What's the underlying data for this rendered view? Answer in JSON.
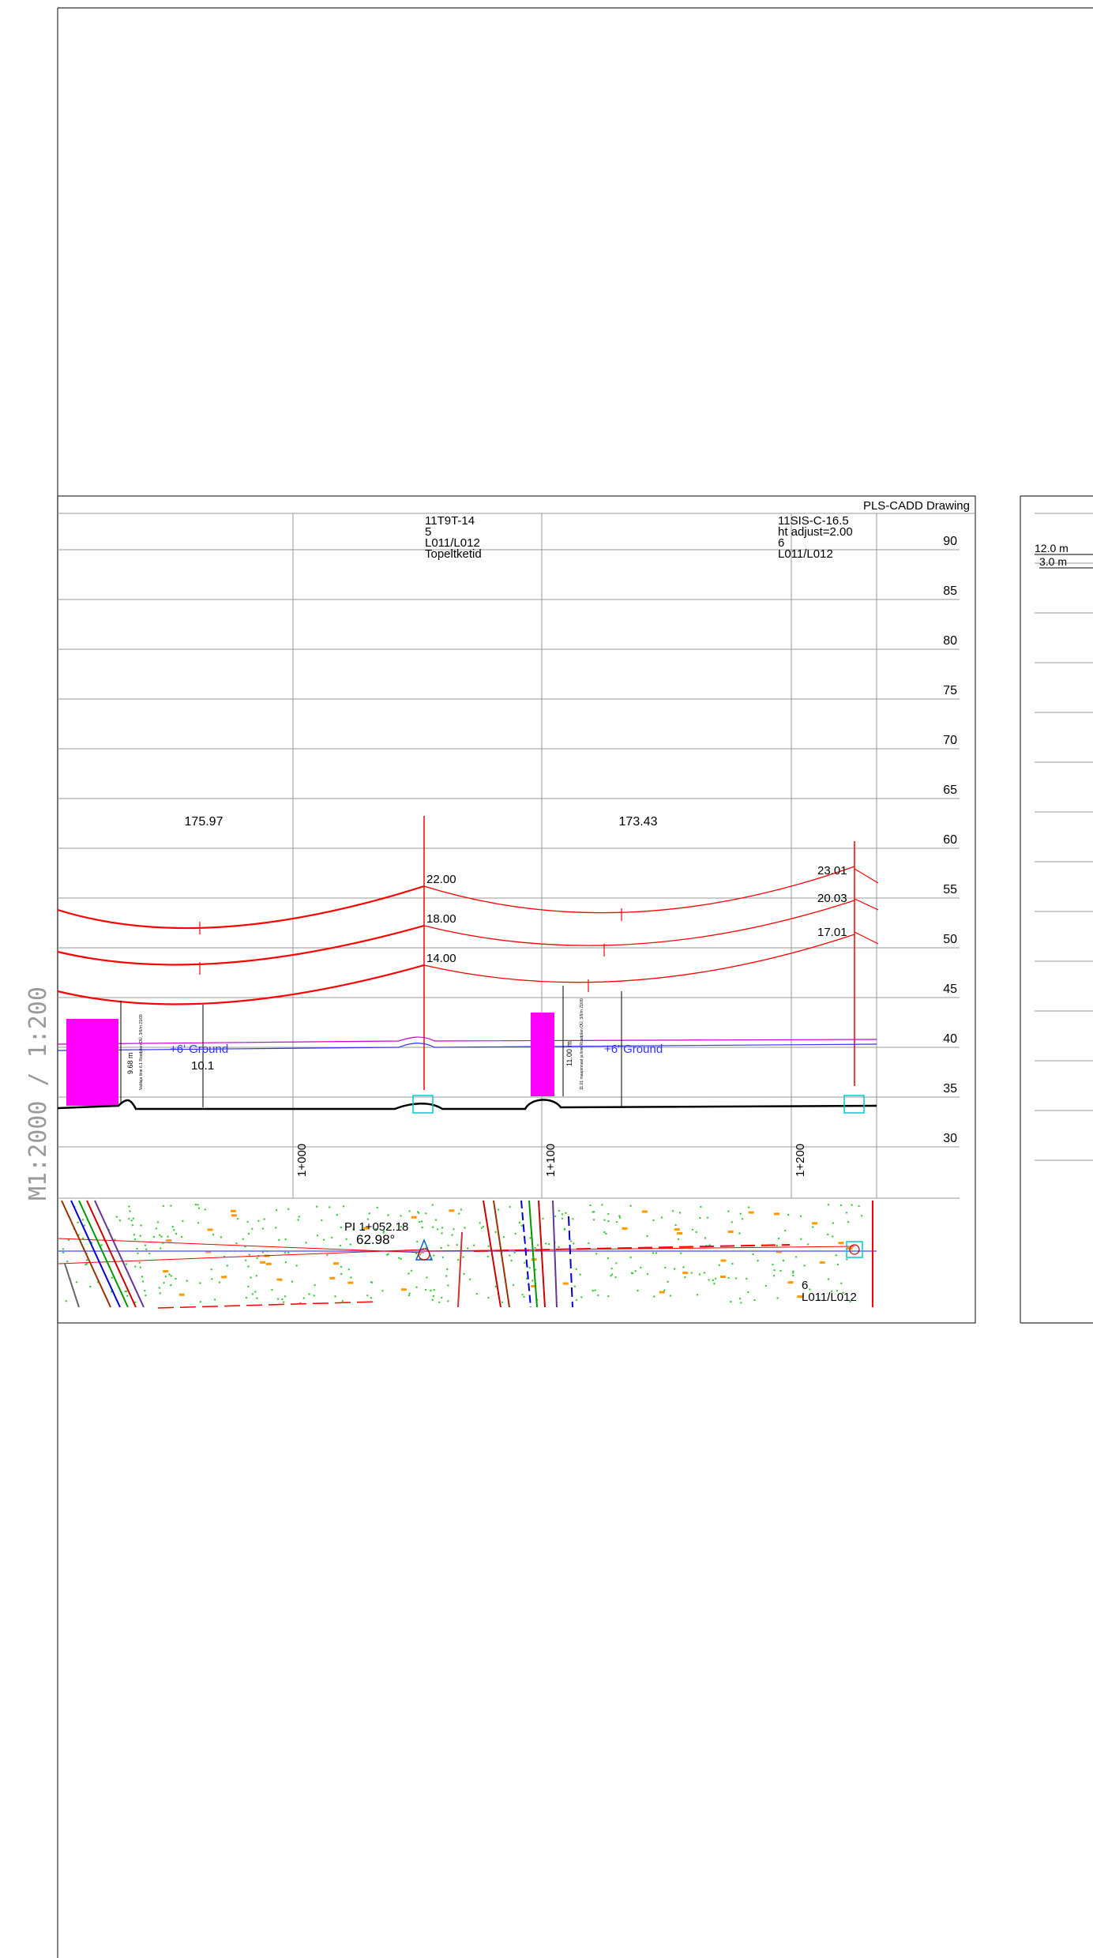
{
  "drawing": {
    "header": "PLS-CADD Drawing",
    "scale_label": "M1:2000 / 1:200"
  },
  "elevation_axis": {
    "ticks": [
      "90",
      "85",
      "80",
      "75",
      "70",
      "65",
      "60",
      "55",
      "50",
      "45",
      "40",
      "35",
      "30"
    ]
  },
  "stations": [
    "1+000",
    "1+100",
    "1+200"
  ],
  "spans": [
    "175.97",
    "173.43"
  ],
  "structures": {
    "left": {
      "lines": [
        "11T9T-14",
        "5",
        "L011/L012",
        "Topeltketid"
      ]
    },
    "right": {
      "lines": [
        "11SIS-C-16.5",
        "ht adjust=2.00",
        "6",
        "L011/L012"
      ]
    }
  },
  "attachment_heights": {
    "left": [
      "22.00",
      "18.00",
      "14.00"
    ],
    "right": [
      "23.01",
      "20.03",
      "17.01"
    ]
  },
  "clearances": {
    "left": {
      "label": "+6' Ground",
      "value": "10.1",
      "note": "9.68 m",
      "small": "Valdaja liine 6.1 Roadplan OÜ, 3/6/m 21/09"
    },
    "right": {
      "label": "+6' Ground",
      "value": "",
      "note": "11.00 m",
      "small": "11.01 maapinnast ja liine Roadplan OÜ, 3/6/m 21/09"
    }
  },
  "plan_view": {
    "pi_label": "PI 1+052.18",
    "pi_angle": "62.98°",
    "right_struct": [
      "6",
      "L011/L012"
    ]
  },
  "second_sheet": {
    "dims": [
      "12.0 m",
      "3.0 m"
    ]
  },
  "colors": {
    "conductor": "#ff0000",
    "ground_line": "#000000",
    "clearance_line": "#cc00cc",
    "ground_offset": "#3333ff",
    "obstacle": "#ff00ff",
    "structure_marker": "#00cccc",
    "grid": "#999999"
  }
}
